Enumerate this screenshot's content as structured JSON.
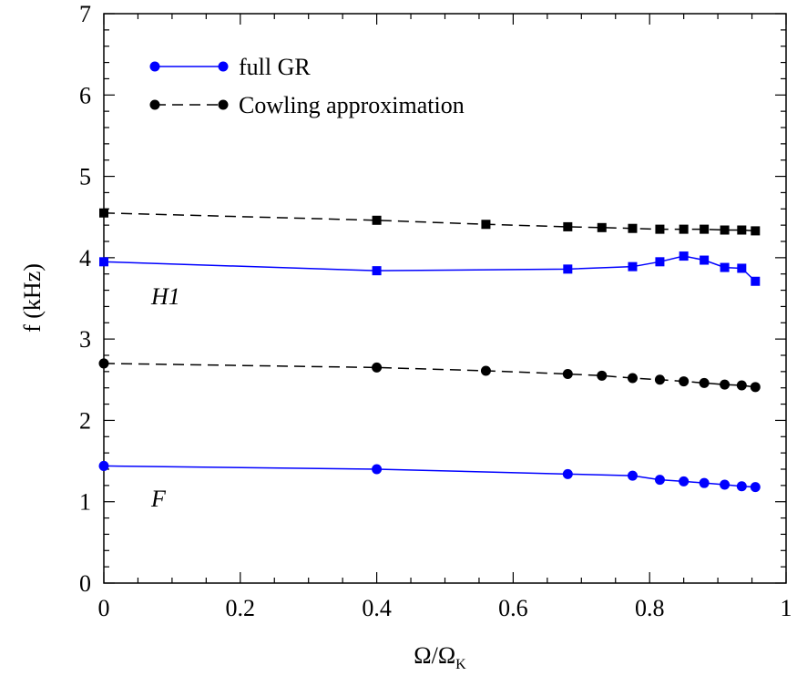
{
  "chart_data": {
    "type": "line",
    "xlabel": "Ω/Ω",
    "xlabel_sub": "K",
    "ylabel": "f (kHz)",
    "xlim": [
      0,
      1
    ],
    "ylim": [
      0,
      7
    ],
    "xticks": [
      "0",
      "0.2",
      "0.4",
      "0.6",
      "0.8",
      "1"
    ],
    "yticks": [
      "0",
      "1",
      "2",
      "3",
      "4",
      "5",
      "6",
      "7"
    ],
    "grid": false,
    "legend_position": "top-left",
    "legend": [
      {
        "label": "full GR",
        "color": "#0000ff",
        "dash": "solid"
      },
      {
        "label": "Cowling approximation",
        "color": "#000000",
        "dash": "dashed"
      }
    ],
    "annotations": [
      {
        "text": "H1",
        "x": 0.07,
        "y": 3.5
      },
      {
        "text": "F",
        "x": 0.07,
        "y": 1.0
      }
    ],
    "series": [
      {
        "mode": "H1",
        "approx": "Cowling approximation",
        "color": "#000000",
        "dash": "dashed",
        "marker": "square",
        "x": [
          0.0,
          0.4,
          0.56,
          0.68,
          0.73,
          0.775,
          0.815,
          0.85,
          0.88,
          0.91,
          0.935,
          0.955
        ],
        "y": [
          4.55,
          4.46,
          4.41,
          4.38,
          4.37,
          4.36,
          4.35,
          4.35,
          4.35,
          4.34,
          4.34,
          4.33
        ]
      },
      {
        "mode": "H1",
        "approx": "full GR",
        "color": "#0000ff",
        "dash": "solid",
        "marker": "square",
        "x": [
          0.0,
          0.4,
          0.68,
          0.775,
          0.815,
          0.85,
          0.88,
          0.91,
          0.935,
          0.955
        ],
        "y": [
          3.95,
          3.84,
          3.86,
          3.89,
          3.95,
          4.02,
          3.97,
          3.88,
          3.87,
          3.71
        ]
      },
      {
        "mode": "F",
        "approx": "Cowling approximation",
        "color": "#000000",
        "dash": "dashed",
        "marker": "circle",
        "x": [
          0.0,
          0.4,
          0.56,
          0.68,
          0.73,
          0.775,
          0.815,
          0.85,
          0.88,
          0.91,
          0.935,
          0.955
        ],
        "y": [
          2.7,
          2.65,
          2.61,
          2.57,
          2.55,
          2.52,
          2.5,
          2.48,
          2.46,
          2.44,
          2.43,
          2.41
        ]
      },
      {
        "mode": "F",
        "approx": "full GR",
        "color": "#0000ff",
        "dash": "solid",
        "marker": "circle",
        "x": [
          0.0,
          0.4,
          0.68,
          0.775,
          0.815,
          0.85,
          0.88,
          0.91,
          0.935,
          0.955
        ],
        "y": [
          1.44,
          1.4,
          1.34,
          1.32,
          1.27,
          1.25,
          1.23,
          1.21,
          1.19,
          1.18
        ]
      }
    ]
  }
}
